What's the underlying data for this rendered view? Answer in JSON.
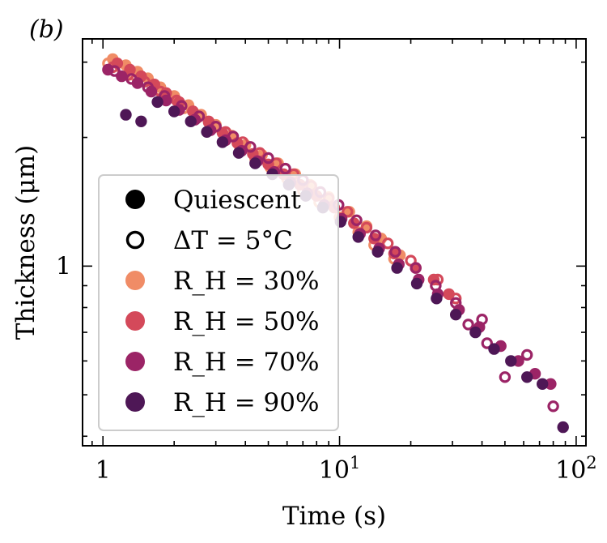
{
  "chart_data": {
    "type": "scatter",
    "panel_label": "(b)",
    "xlabel": "Time (s)",
    "ylabel": "Thickness (μm)",
    "xscale": "log",
    "yscale": "log",
    "xlim": [
      0.82,
      110
    ],
    "ylim": [
      0.38,
      3.4
    ],
    "x_tick_labels": [
      {
        "value": 1,
        "base": "1",
        "exp": ""
      },
      {
        "value": 10,
        "base": "10",
        "exp": "1"
      },
      {
        "value": 100,
        "base": "10",
        "exp": "2"
      }
    ],
    "y_tick_labels": [
      {
        "value": 1,
        "text": "1"
      }
    ],
    "legend": {
      "position": "lower-left",
      "entries": [
        {
          "marker": "filled",
          "color": "#000000",
          "label": "Quiescent"
        },
        {
          "marker": "open",
          "color": "#000000",
          "label": "ΔT = 5°C"
        },
        {
          "marker": "filled",
          "color": "#f08c66",
          "label": "R_H = 30%"
        },
        {
          "marker": "filled",
          "color": "#d4495a",
          "label": "R_H = 50%"
        },
        {
          "marker": "filled",
          "color": "#9b2466",
          "label": "R_H = 70%"
        },
        {
          "marker": "filled",
          "color": "#4e1756",
          "label": "R_H = 90%"
        }
      ]
    },
    "series": [
      {
        "name": "Quiescent R_H = 30%",
        "marker": "filled",
        "color": "#f08c66",
        "x": [
          1.1,
          1.25,
          1.4,
          1.55,
          1.75,
          2.0,
          2.3,
          2.6,
          3.0,
          3.5,
          4.0,
          4.7,
          5.5,
          6.5,
          7.5,
          9.0,
          11,
          13,
          15,
          18
        ],
        "y": [
          3.05,
          2.95,
          2.85,
          2.75,
          2.62,
          2.5,
          2.38,
          2.26,
          2.14,
          2.02,
          1.92,
          1.82,
          1.74,
          1.64,
          1.55,
          1.45,
          1.34,
          1.24,
          1.16,
          1.06
        ]
      },
      {
        "name": "ΔT = 5°C R_H = 30%",
        "marker": "open",
        "color": "#f08c66",
        "x": [
          1.05,
          1.2,
          1.35,
          1.5,
          1.7,
          1.9,
          2.2,
          2.5,
          2.9,
          3.3,
          3.8,
          4.4,
          5.1,
          6.0,
          7.0,
          8.2,
          10,
          12,
          14,
          17
        ],
        "y": [
          2.98,
          2.9,
          2.8,
          2.7,
          2.58,
          2.48,
          2.34,
          2.22,
          2.1,
          1.99,
          1.88,
          1.78,
          1.7,
          1.6,
          1.5,
          1.41,
          1.3,
          1.2,
          1.12,
          1.04
        ]
      },
      {
        "name": "Quiescent R_H = 50%",
        "marker": "filled",
        "color": "#d4495a",
        "x": [
          1.15,
          1.3,
          1.45,
          1.65,
          1.85,
          2.1,
          2.4,
          2.8,
          3.2,
          3.7,
          4.3,
          5.0,
          5.8,
          6.8,
          8.0,
          9.5,
          11.5,
          14,
          17,
          21,
          25,
          29
        ],
        "y": [
          2.98,
          2.88,
          2.78,
          2.66,
          2.54,
          2.42,
          2.3,
          2.17,
          2.05,
          1.94,
          1.83,
          1.73,
          1.64,
          1.55,
          1.46,
          1.37,
          1.26,
          1.16,
          1.07,
          0.99,
          0.93,
          0.86
        ]
      },
      {
        "name": "ΔT = 5°C R_H = 50%",
        "marker": "open",
        "color": "#d4495a",
        "x": [
          1.1,
          1.28,
          1.5,
          1.75,
          2.05,
          2.4,
          2.8,
          3.3,
          3.9,
          4.6,
          5.4,
          6.4,
          7.6,
          9.0,
          10.8,
          13,
          16,
          20,
          26,
          31
        ],
        "y": [
          2.92,
          2.8,
          2.7,
          2.56,
          2.44,
          2.3,
          2.18,
          2.06,
          1.95,
          1.84,
          1.74,
          1.64,
          1.54,
          1.44,
          1.34,
          1.23,
          1.13,
          1.03,
          0.93,
          0.84
        ]
      },
      {
        "name": "Quiescent R_H = 70%",
        "marker": "filled",
        "color": "#9b2466",
        "x": [
          1.05,
          1.2,
          1.4,
          1.6,
          1.85,
          2.1,
          2.45,
          2.85,
          3.3,
          3.85,
          4.5,
          5.3,
          6.2,
          7.3,
          8.6,
          10.2,
          12.2,
          14.7,
          17.8,
          21.6,
          26,
          32,
          39,
          48,
          57,
          67,
          78
        ],
        "y": [
          2.88,
          2.78,
          2.68,
          2.56,
          2.44,
          2.32,
          2.2,
          2.08,
          1.97,
          1.86,
          1.76,
          1.66,
          1.57,
          1.48,
          1.39,
          1.29,
          1.19,
          1.1,
          1.01,
          0.93,
          0.86,
          0.79,
          0.72,
          0.65,
          0.6,
          0.56,
          0.53
        ]
      },
      {
        "name": "ΔT = 5°C R_H = 70%",
        "marker": "open",
        "color": "#9b2466",
        "x": [
          1.12,
          1.32,
          1.55,
          1.82,
          2.15,
          2.55,
          3.0,
          3.55,
          4.2,
          5.0,
          5.9,
          7.0,
          8.3,
          9.9,
          11.8,
          14.2,
          17.2,
          21,
          25.5,
          31,
          35,
          40,
          42,
          50,
          62,
          80
        ],
        "y": [
          2.86,
          2.74,
          2.62,
          2.5,
          2.37,
          2.24,
          2.12,
          2.01,
          1.9,
          1.79,
          1.69,
          1.59,
          1.49,
          1.39,
          1.28,
          1.18,
          1.08,
          0.99,
          0.9,
          0.82,
          0.73,
          0.75,
          0.66,
          0.55,
          0.62,
          0.47
        ]
      },
      {
        "name": "Quiescent R_H = 90%",
        "marker": "filled",
        "color": "#4e1756",
        "x": [
          1.25,
          1.45,
          1.7,
          2.0,
          2.35,
          2.75,
          3.2,
          3.75,
          4.4,
          5.2,
          6.1,
          7.2,
          8.5,
          10.1,
          12,
          14.5,
          17.5,
          21.2,
          25.7,
          31,
          37.5,
          45,
          53,
          62,
          72,
          88
        ],
        "y": [
          2.26,
          2.18,
          2.42,
          2.3,
          2.18,
          2.06,
          1.95,
          1.84,
          1.74,
          1.64,
          1.55,
          1.46,
          1.37,
          1.27,
          1.17,
          1.08,
          0.99,
          0.91,
          0.84,
          0.77,
          0.7,
          0.64,
          0.6,
          0.55,
          0.53,
          0.42
        ]
      }
    ]
  }
}
